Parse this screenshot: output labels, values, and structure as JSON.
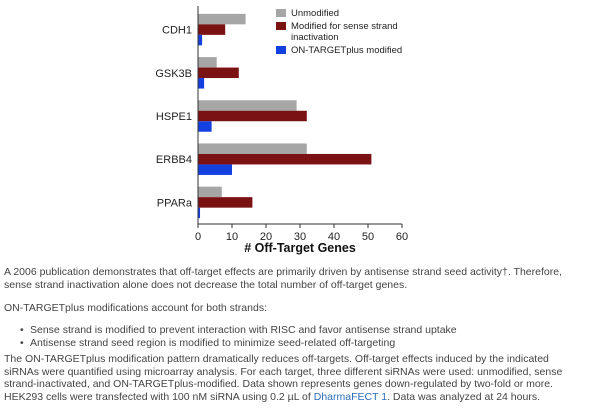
{
  "chart_data": {
    "type": "bar",
    "orientation": "horizontal",
    "categories": [
      "CDH1",
      "GSK3B",
      "HSPE1",
      "ERBB4",
      "PPARa"
    ],
    "series": [
      {
        "name": "Unmodified",
        "color": "#a6a6a6",
        "values": [
          14,
          5.5,
          29,
          32,
          7
        ]
      },
      {
        "name": "Modified for sense strand inactivation",
        "color": "#7a1113",
        "values": [
          8,
          12,
          32,
          51,
          16
        ]
      },
      {
        "name": "ON-TARGETplus modified",
        "color": "#1540e0",
        "values": [
          1.2,
          1.8,
          4,
          10,
          0.6
        ]
      }
    ],
    "xlabel": "# Off-Target Genes",
    "xlim": [
      0,
      60
    ],
    "xticks": [
      0,
      10,
      20,
      30,
      40,
      50,
      60
    ],
    "legend_labels": [
      [
        "Unmodified"
      ],
      [
        "Modified for sense strand",
        "inactivation"
      ],
      [
        "ON-TARGETplus modified"
      ]
    ],
    "legend_position": "top-right",
    "grid": false
  },
  "text": {
    "para1": "A 2006 publication demonstrates that off-target effects are primarily driven by antisense strand seed activity†. Therefore, sense strand inactivation alone does not decrease the total number of off-target genes.",
    "para2": "ON-TARGETplus modifications account for both strands:",
    "bullets": [
      "Sense strand is modified to prevent interaction with RISC and favor antisense strand uptake",
      "Antisense strand seed region is modified to minimize seed-related off-targeting"
    ],
    "para3": "The ON-TARGETplus modification pattern dramatically reduces off-targets. Off-target effects induced by the indicated siRNAs were quantified using microarray analysis. For each target, three different siRNAs were used: unmodified, sense strand-inactivated, and ON-TARGETplus-modified. Data shown represents genes down-regulated by two-fold or more. HEK293 cells were transfected with 100 nM siRNA using 0.2 µL of",
    "para3_link": "DharmaFECT 1",
    "para3_end": ". Data was analyzed at 24 hours."
  }
}
